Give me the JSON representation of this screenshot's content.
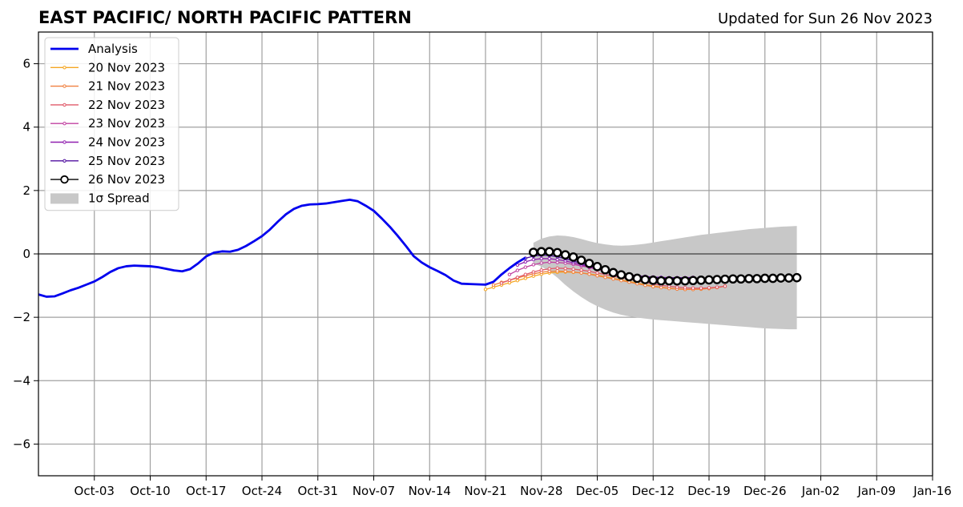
{
  "chart_data": {
    "type": "line",
    "title": "EAST PACIFIC/ NORTH PACIFIC PATTERN",
    "subtitle": "Updated for Sun 26 Nov 2023",
    "xlabel": "",
    "ylabel": "",
    "x_start": "2023-09-26",
    "xlim": [
      "2023-09-26",
      "2024-01-16"
    ],
    "ylim": [
      -7,
      7
    ],
    "grid": true,
    "legend_position": "top-left",
    "zero_line": 0,
    "x_ticks": [
      "Oct-03",
      "Oct-10",
      "Oct-17",
      "Oct-24",
      "Oct-31",
      "Nov-07",
      "Nov-14",
      "Nov-21",
      "Nov-28",
      "Dec-05",
      "Dec-12",
      "Dec-19",
      "Dec-26",
      "Jan-02",
      "Jan-09",
      "Jan-16"
    ],
    "y_ticks": [
      -6,
      -4,
      -2,
      0,
      2,
      4,
      6
    ],
    "y_tick_labels": [
      "−6",
      "−4",
      "−2",
      "0",
      "2",
      "4",
      "6"
    ],
    "analysis": {
      "name": "Analysis",
      "color": "#0000ee",
      "dates": [
        "2023-09-26",
        "2023-09-27",
        "2023-09-28",
        "2023-09-29",
        "2023-09-30",
        "2023-10-01",
        "2023-10-02",
        "2023-10-03",
        "2023-10-04",
        "2023-10-05",
        "2023-10-06",
        "2023-10-07",
        "2023-10-08",
        "2023-10-09",
        "2023-10-10",
        "2023-10-11",
        "2023-10-12",
        "2023-10-13",
        "2023-10-14",
        "2023-10-15",
        "2023-10-16",
        "2023-10-17",
        "2023-10-18",
        "2023-10-19",
        "2023-10-20",
        "2023-10-21",
        "2023-10-22",
        "2023-10-23",
        "2023-10-24",
        "2023-10-25",
        "2023-10-26",
        "2023-10-27",
        "2023-10-28",
        "2023-10-29",
        "2023-10-30",
        "2023-10-31",
        "2023-11-01",
        "2023-11-02",
        "2023-11-03",
        "2023-11-04",
        "2023-11-05",
        "2023-11-06",
        "2023-11-07",
        "2023-11-08",
        "2023-11-09",
        "2023-11-10",
        "2023-11-11",
        "2023-11-12",
        "2023-11-13",
        "2023-11-14",
        "2023-11-15",
        "2023-11-16",
        "2023-11-17",
        "2023-11-18",
        "2023-11-19",
        "2023-11-20",
        "2023-11-21",
        "2023-11-22",
        "2023-11-23",
        "2023-11-24",
        "2023-11-25",
        "2023-11-26"
      ],
      "values": [
        -1.28,
        -1.35,
        -1.34,
        -1.25,
        -1.15,
        -1.07,
        -0.97,
        -0.87,
        -0.73,
        -0.57,
        -0.45,
        -0.39,
        -0.37,
        -0.38,
        -0.39,
        -0.42,
        -0.47,
        -0.52,
        -0.55,
        -0.48,
        -0.3,
        -0.08,
        0.04,
        0.08,
        0.07,
        0.13,
        0.25,
        0.4,
        0.56,
        0.77,
        1.02,
        1.25,
        1.42,
        1.52,
        1.56,
        1.57,
        1.59,
        1.63,
        1.67,
        1.71,
        1.66,
        1.52,
        1.36,
        1.12,
        0.86,
        0.57,
        0.26,
        -0.07,
        -0.27,
        -0.42,
        -0.54,
        -0.67,
        -0.84,
        -0.94,
        -0.95,
        -0.96,
        -0.97,
        -0.88,
        -0.65,
        -0.45,
        -0.27,
        -0.12
      ]
    },
    "forecasts": [
      {
        "name": "20 Nov 2023",
        "color": "#f5a623",
        "start": "2023-11-21",
        "values": [
          -1.12,
          -1.05,
          -0.98,
          -0.91,
          -0.84,
          -0.77,
          -0.7,
          -0.64,
          -0.6,
          -0.58,
          -0.57,
          -0.58,
          -0.6,
          -0.63,
          -0.67,
          -0.72,
          -0.77,
          -0.82,
          -0.87,
          -0.92,
          -0.97,
          -1.01,
          -1.05,
          -1.08,
          -1.1,
          -1.12,
          -1.12,
          -1.11,
          -1.09,
          -1.06,
          -1.02
        ]
      },
      {
        "name": "21 Nov 2023",
        "color": "#f08040",
        "start": "2023-11-22",
        "values": [
          -0.98,
          -0.9,
          -0.83,
          -0.76,
          -0.69,
          -0.63,
          -0.58,
          -0.55,
          -0.54,
          -0.55,
          -0.57,
          -0.6,
          -0.64,
          -0.69,
          -0.74,
          -0.79,
          -0.84,
          -0.89,
          -0.94,
          -0.99,
          -1.03,
          -1.06,
          -1.09,
          -1.11,
          -1.12,
          -1.12,
          -1.11,
          -1.09,
          -1.06,
          -1.02
        ]
      },
      {
        "name": "22 Nov 2023",
        "color": "#e05a6a",
        "start": "2023-11-23",
        "values": [
          -0.92,
          -0.83,
          -0.74,
          -0.65,
          -0.57,
          -0.51,
          -0.47,
          -0.45,
          -0.46,
          -0.48,
          -0.51,
          -0.55,
          -0.6,
          -0.65,
          -0.7,
          -0.75,
          -0.8,
          -0.85,
          -0.9,
          -0.95,
          -0.99,
          -1.02,
          -1.05,
          -1.07,
          -1.08,
          -1.08,
          -1.07,
          -1.05,
          -1.02
        ]
      },
      {
        "name": "23 Nov 2023",
        "color": "#c040a0",
        "start": "2023-11-24",
        "values": [
          -0.65,
          -0.52,
          -0.42,
          -0.34,
          -0.29,
          -0.26,
          -0.27,
          -0.29,
          -0.33,
          -0.38,
          -0.43,
          -0.49,
          -0.55,
          -0.6,
          -0.65,
          -0.7,
          -0.74,
          -0.78,
          -0.81,
          -0.83,
          -0.84,
          -0.84,
          -0.83,
          -0.82,
          -0.81
        ]
      },
      {
        "name": "24 Nov 2023",
        "color": "#9020b0",
        "start": "2023-11-25",
        "values": [
          -0.35,
          -0.25,
          -0.18,
          -0.15,
          -0.15,
          -0.18,
          -0.22,
          -0.28,
          -0.34,
          -0.41,
          -0.47,
          -0.53,
          -0.58,
          -0.63,
          -0.66,
          -0.69,
          -0.71,
          -0.73,
          -0.74,
          -0.75,
          -0.75,
          -0.75,
          -0.74
        ]
      },
      {
        "name": "25 Nov 2023",
        "color": "#5010a0",
        "start": "2023-11-26",
        "values": [
          -0.14,
          -0.07,
          -0.04,
          -0.05,
          -0.09,
          -0.15,
          -0.22,
          -0.3,
          -0.38,
          -0.45,
          -0.52,
          -0.58,
          -0.63,
          -0.67,
          -0.7,
          -0.72,
          -0.74,
          -0.75,
          -0.76,
          -0.76,
          -0.76,
          -0.76
        ]
      },
      {
        "name": "26 Nov 2023",
        "color": "#000000",
        "start": "2023-11-27",
        "values": [
          0.05,
          0.07,
          0.07,
          0.04,
          -0.03,
          -0.1,
          -0.2,
          -0.3,
          -0.4,
          -0.5,
          -0.59,
          -0.66,
          -0.72,
          -0.77,
          -0.81,
          -0.83,
          -0.85,
          -0.85,
          -0.85,
          -0.85,
          -0.84,
          -0.83,
          -0.82,
          -0.81,
          -0.8,
          -0.79,
          -0.79,
          -0.78,
          -0.78,
          -0.77,
          -0.77,
          -0.76,
          -0.76,
          -0.75
        ]
      }
    ],
    "spread": {
      "name": "1σ Spread",
      "color": "#c8c8c8",
      "start": "2023-11-27",
      "upper": [
        0.35,
        0.48,
        0.55,
        0.58,
        0.57,
        0.53,
        0.47,
        0.4,
        0.34,
        0.3,
        0.27,
        0.26,
        0.27,
        0.29,
        0.32,
        0.36,
        0.4,
        0.44,
        0.48,
        0.52,
        0.56,
        0.6,
        0.63,
        0.66,
        0.69,
        0.72,
        0.75,
        0.78,
        0.8,
        0.82,
        0.84,
        0.86,
        0.87,
        0.88
      ],
      "lower": [
        -0.3,
        -0.4,
        -0.55,
        -0.75,
        -0.98,
        -1.18,
        -1.36,
        -1.52,
        -1.65,
        -1.76,
        -1.85,
        -1.92,
        -1.97,
        -2.01,
        -2.04,
        -2.07,
        -2.09,
        -2.11,
        -2.13,
        -2.15,
        -2.17,
        -2.19,
        -2.21,
        -2.23,
        -2.25,
        -2.27,
        -2.29,
        -2.31,
        -2.33,
        -2.35,
        -2.36,
        -2.37,
        -2.38,
        -2.38
      ]
    }
  }
}
